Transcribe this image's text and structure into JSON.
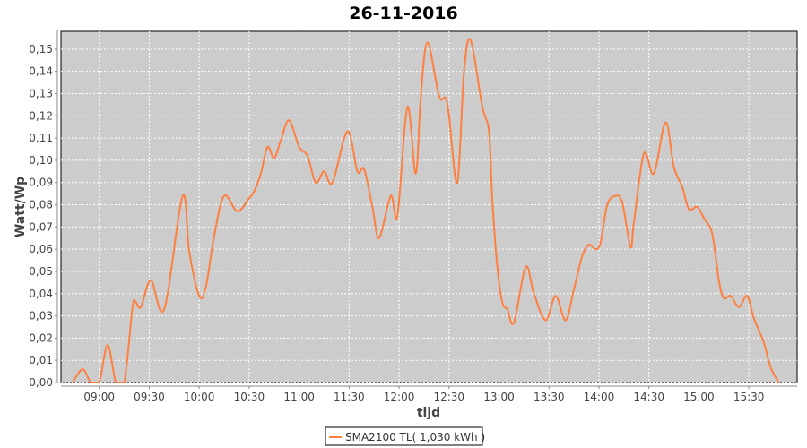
{
  "chart_data": {
    "type": "line",
    "title": "26-11-2016",
    "xlabel": "tijd",
    "ylabel": "Watt/Wp",
    "xlim": [
      "08:37",
      "15:59"
    ],
    "ylim": [
      0,
      0.158
    ],
    "x_ticks": [
      "09:00",
      "09:30",
      "10:00",
      "10:30",
      "11:00",
      "11:30",
      "12:00",
      "12:30",
      "13:00",
      "13:30",
      "14:00",
      "14:30",
      "15:00",
      "15:30"
    ],
    "y_ticks": [
      "0,00",
      "0,01",
      "0,02",
      "0,03",
      "0,04",
      "0,05",
      "0,06",
      "0,07",
      "0,08",
      "0,09",
      "0,10",
      "0,11",
      "0,12",
      "0,13",
      "0,14",
      "0,15"
    ],
    "grid": true,
    "legend_placement": "bottom",
    "plot_background": "#cccccc",
    "series": [
      {
        "name": "SMA2100 TL( 1,030 kWh )",
        "color": "#ff7f3f",
        "points": [
          [
            "08:44",
            0
          ],
          [
            "08:50",
            0.006
          ],
          [
            "08:55",
            0
          ],
          [
            "09:00",
            0
          ],
          [
            "09:05",
            0.017
          ],
          [
            "09:10",
            0
          ],
          [
            "09:15",
            0
          ],
          [
            "09:20",
            0.034
          ],
          [
            "09:22",
            0.036
          ],
          [
            "09:25",
            0.034
          ],
          [
            "09:31",
            0.046
          ],
          [
            "09:39",
            0.033
          ],
          [
            "09:50",
            0.084
          ],
          [
            "09:54",
            0.059
          ],
          [
            "10:00",
            0.039
          ],
          [
            "10:04",
            0.043
          ],
          [
            "10:09",
            0.066
          ],
          [
            "10:15",
            0.084
          ],
          [
            "10:23",
            0.077
          ],
          [
            "10:30",
            0.083
          ],
          [
            "10:33",
            0.086
          ],
          [
            "10:37",
            0.094
          ],
          [
            "10:41",
            0.106
          ],
          [
            "10:45",
            0.101
          ],
          [
            "10:49",
            0.109
          ],
          [
            "10:54",
            0.118
          ],
          [
            "11:00",
            0.106
          ],
          [
            "11:05",
            0.102
          ],
          [
            "11:10",
            0.09
          ],
          [
            "11:15",
            0.095
          ],
          [
            "11:20",
            0.09
          ],
          [
            "11:29",
            0.113
          ],
          [
            "11:35",
            0.095
          ],
          [
            "11:39",
            0.096
          ],
          [
            "11:44",
            0.079
          ],
          [
            "11:48",
            0.065
          ],
          [
            "11:55",
            0.084
          ],
          [
            "11:59",
            0.075
          ],
          [
            "12:05",
            0.124
          ],
          [
            "12:10",
            0.094
          ],
          [
            "12:13",
            0.128
          ],
          [
            "12:17",
            0.153
          ],
          [
            "12:24",
            0.129
          ],
          [
            "12:28",
            0.128
          ],
          [
            "12:30",
            0.12
          ],
          [
            "12:35",
            0.09
          ],
          [
            "12:39",
            0.14
          ],
          [
            "12:43",
            0.154
          ],
          [
            "12:50",
            0.124
          ],
          [
            "12:54",
            0.113
          ],
          [
            "12:56",
            0.082
          ],
          [
            "12:59",
            0.052
          ],
          [
            "13:02",
            0.036
          ],
          [
            "13:05",
            0.033
          ],
          [
            "13:09",
            0.027
          ],
          [
            "13:16",
            0.052
          ],
          [
            "13:21",
            0.04
          ],
          [
            "13:28",
            0.028
          ],
          [
            "13:34",
            0.039
          ],
          [
            "13:40",
            0.028
          ],
          [
            "13:45",
            0.042
          ],
          [
            "13:50",
            0.057
          ],
          [
            "13:54",
            0.062
          ],
          [
            "13:58",
            0.06
          ],
          [
            "14:01",
            0.063
          ],
          [
            "14:05",
            0.08
          ],
          [
            "14:10",
            0.084
          ],
          [
            "14:14",
            0.081
          ],
          [
            "14:19",
            0.061
          ],
          [
            "14:21",
            0.072
          ],
          [
            "14:27",
            0.103
          ],
          [
            "14:33",
            0.094
          ],
          [
            "14:40",
            0.117
          ],
          [
            "14:45",
            0.097
          ],
          [
            "14:50",
            0.088
          ],
          [
            "14:54",
            0.078
          ],
          [
            "14:59",
            0.079
          ],
          [
            "15:03",
            0.074
          ],
          [
            "15:08",
            0.067
          ],
          [
            "15:12",
            0.046
          ],
          [
            "15:15",
            0.038
          ],
          [
            "15:19",
            0.039
          ],
          [
            "15:24",
            0.034
          ],
          [
            "15:29",
            0.039
          ],
          [
            "15:33",
            0.029
          ],
          [
            "15:39",
            0.018
          ],
          [
            "15:43",
            0.007
          ],
          [
            "15:48",
            0
          ]
        ]
      }
    ]
  }
}
